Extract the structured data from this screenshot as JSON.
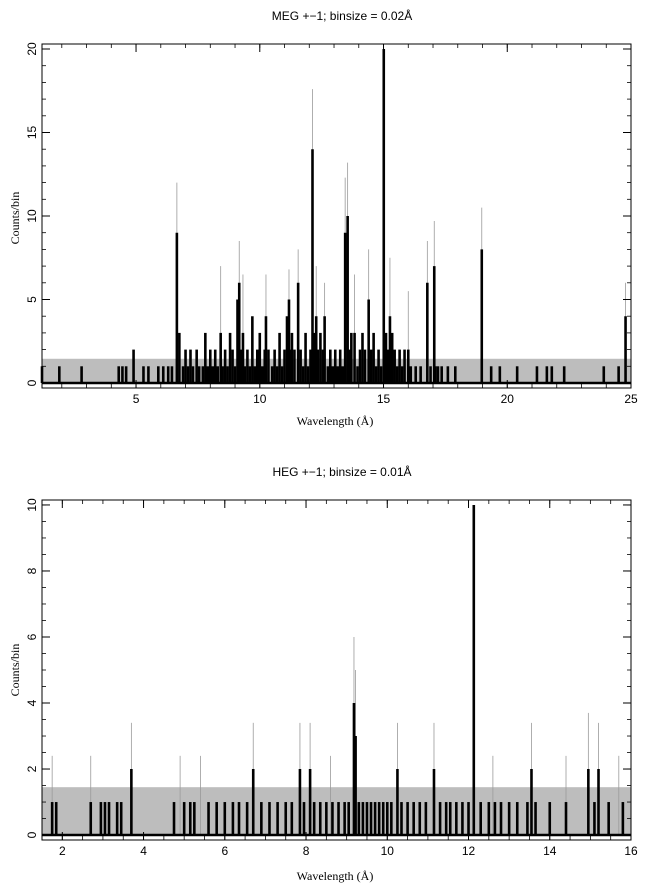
{
  "chart_data": [
    {
      "type": "bar",
      "title": "MEG +−1; binsize = 0.02Å",
      "xlabel": "Wavelength (Å)",
      "ylabel": "Counts/bin",
      "xlim": [
        1.2,
        25
      ],
      "ylim": [
        -0.3,
        20.3
      ],
      "xticks": [
        5,
        10,
        15,
        20,
        25
      ],
      "yticks": [
        0,
        5,
        10,
        15,
        20
      ],
      "minor_x_step": 1,
      "minor_y_step": 1,
      "error_band": [
        0,
        1.45
      ],
      "colors": {
        "data": "#000000",
        "error": "#9a9a9a",
        "band": "#bdbdbd"
      },
      "error_spikes": [
        {
          "x": 6.65,
          "y": 12
        },
        {
          "x": 9.17,
          "y": 8.5
        },
        {
          "x": 12.13,
          "y": 17.6
        },
        {
          "x": 13.45,
          "y": 12.3
        },
        {
          "x": 13.55,
          "y": 13.2
        },
        {
          "x": 15.01,
          "y": 19.5
        },
        {
          "x": 16.77,
          "y": 8.5
        },
        {
          "x": 17.05,
          "y": 9.7
        },
        {
          "x": 18.97,
          "y": 10.5
        },
        {
          "x": 24.78,
          "y": 6
        },
        {
          "x": 11.55,
          "y": 8
        },
        {
          "x": 12.28,
          "y": 7
        },
        {
          "x": 12.62,
          "y": 6
        },
        {
          "x": 14.4,
          "y": 8
        },
        {
          "x": 15.26,
          "y": 7.5
        },
        {
          "x": 13.83,
          "y": 6.5
        },
        {
          "x": 8.42,
          "y": 7
        },
        {
          "x": 9.32,
          "y": 6.5
        },
        {
          "x": 10.25,
          "y": 6.5
        },
        {
          "x": 11.18,
          "y": 6.8
        },
        {
          "x": 16.0,
          "y": 5.5
        }
      ],
      "points": [
        {
          "x": 1.2,
          "y": 1
        },
        {
          "x": 1.9,
          "y": 1
        },
        {
          "x": 2.8,
          "y": 1
        },
        {
          "x": 4.3,
          "y": 1
        },
        {
          "x": 4.45,
          "y": 1
        },
        {
          "x": 4.6,
          "y": 1
        },
        {
          "x": 4.9,
          "y": 2
        },
        {
          "x": 5.3,
          "y": 1
        },
        {
          "x": 5.5,
          "y": 1
        },
        {
          "x": 5.9,
          "y": 1
        },
        {
          "x": 6.1,
          "y": 1
        },
        {
          "x": 6.3,
          "y": 1
        },
        {
          "x": 6.45,
          "y": 1
        },
        {
          "x": 6.65,
          "y": 9
        },
        {
          "x": 6.75,
          "y": 3
        },
        {
          "x": 6.9,
          "y": 1
        },
        {
          "x": 7.0,
          "y": 2
        },
        {
          "x": 7.1,
          "y": 1
        },
        {
          "x": 7.2,
          "y": 2
        },
        {
          "x": 7.3,
          "y": 1
        },
        {
          "x": 7.45,
          "y": 2
        },
        {
          "x": 7.55,
          "y": 1
        },
        {
          "x": 7.7,
          "y": 1
        },
        {
          "x": 7.8,
          "y": 3
        },
        {
          "x": 7.9,
          "y": 1
        },
        {
          "x": 8.0,
          "y": 2
        },
        {
          "x": 8.1,
          "y": 1
        },
        {
          "x": 8.2,
          "y": 2
        },
        {
          "x": 8.3,
          "y": 1
        },
        {
          "x": 8.42,
          "y": 3
        },
        {
          "x": 8.5,
          "y": 1
        },
        {
          "x": 8.6,
          "y": 2
        },
        {
          "x": 8.7,
          "y": 1
        },
        {
          "x": 8.8,
          "y": 3
        },
        {
          "x": 8.9,
          "y": 2
        },
        {
          "x": 9.0,
          "y": 1
        },
        {
          "x": 9.1,
          "y": 5
        },
        {
          "x": 9.17,
          "y": 6
        },
        {
          "x": 9.25,
          "y": 2
        },
        {
          "x": 9.32,
          "y": 3
        },
        {
          "x": 9.4,
          "y": 1
        },
        {
          "x": 9.5,
          "y": 2
        },
        {
          "x": 9.6,
          "y": 1
        },
        {
          "x": 9.7,
          "y": 4
        },
        {
          "x": 9.8,
          "y": 1
        },
        {
          "x": 9.9,
          "y": 2
        },
        {
          "x": 10.0,
          "y": 3
        },
        {
          "x": 10.1,
          "y": 1
        },
        {
          "x": 10.2,
          "y": 2
        },
        {
          "x": 10.25,
          "y": 4
        },
        {
          "x": 10.35,
          "y": 2
        },
        {
          "x": 10.5,
          "y": 1
        },
        {
          "x": 10.6,
          "y": 2
        },
        {
          "x": 10.7,
          "y": 1
        },
        {
          "x": 10.8,
          "y": 3
        },
        {
          "x": 10.9,
          "y": 1
        },
        {
          "x": 11.0,
          "y": 2
        },
        {
          "x": 11.1,
          "y": 4
        },
        {
          "x": 11.18,
          "y": 5
        },
        {
          "x": 11.25,
          "y": 2
        },
        {
          "x": 11.3,
          "y": 3
        },
        {
          "x": 11.4,
          "y": 2
        },
        {
          "x": 11.55,
          "y": 6
        },
        {
          "x": 11.65,
          "y": 2
        },
        {
          "x": 11.75,
          "y": 1
        },
        {
          "x": 11.85,
          "y": 3
        },
        {
          "x": 11.95,
          "y": 1
        },
        {
          "x": 12.05,
          "y": 2
        },
        {
          "x": 12.13,
          "y": 14
        },
        {
          "x": 12.2,
          "y": 3
        },
        {
          "x": 12.28,
          "y": 4
        },
        {
          "x": 12.35,
          "y": 2
        },
        {
          "x": 12.45,
          "y": 3
        },
        {
          "x": 12.55,
          "y": 2
        },
        {
          "x": 12.62,
          "y": 4
        },
        {
          "x": 12.75,
          "y": 1
        },
        {
          "x": 12.85,
          "y": 2
        },
        {
          "x": 12.95,
          "y": 1
        },
        {
          "x": 13.05,
          "y": 2
        },
        {
          "x": 13.15,
          "y": 1
        },
        {
          "x": 13.25,
          "y": 2
        },
        {
          "x": 13.35,
          "y": 1
        },
        {
          "x": 13.45,
          "y": 9
        },
        {
          "x": 13.55,
          "y": 10
        },
        {
          "x": 13.62,
          "y": 2
        },
        {
          "x": 13.7,
          "y": 3
        },
        {
          "x": 13.83,
          "y": 3
        },
        {
          "x": 13.95,
          "y": 1
        },
        {
          "x": 14.05,
          "y": 2
        },
        {
          "x": 14.15,
          "y": 3
        },
        {
          "x": 14.25,
          "y": 2
        },
        {
          "x": 14.4,
          "y": 5
        },
        {
          "x": 14.5,
          "y": 2
        },
        {
          "x": 14.6,
          "y": 3
        },
        {
          "x": 14.7,
          "y": 1
        },
        {
          "x": 14.8,
          "y": 2
        },
        {
          "x": 14.9,
          "y": 1
        },
        {
          "x": 15.01,
          "y": 20
        },
        {
          "x": 15.1,
          "y": 3
        },
        {
          "x": 15.18,
          "y": 2
        },
        {
          "x": 15.26,
          "y": 4
        },
        {
          "x": 15.35,
          "y": 3
        },
        {
          "x": 15.45,
          "y": 2
        },
        {
          "x": 15.55,
          "y": 1
        },
        {
          "x": 15.65,
          "y": 2
        },
        {
          "x": 15.75,
          "y": 1
        },
        {
          "x": 15.85,
          "y": 2
        },
        {
          "x": 16.0,
          "y": 2
        },
        {
          "x": 16.1,
          "y": 1
        },
        {
          "x": 16.3,
          "y": 1
        },
        {
          "x": 16.5,
          "y": 1
        },
        {
          "x": 16.77,
          "y": 6
        },
        {
          "x": 16.9,
          "y": 1
        },
        {
          "x": 17.05,
          "y": 7
        },
        {
          "x": 17.1,
          "y": 1
        },
        {
          "x": 17.2,
          "y": 1
        },
        {
          "x": 17.35,
          "y": 1
        },
        {
          "x": 17.6,
          "y": 1
        },
        {
          "x": 17.9,
          "y": 1
        },
        {
          "x": 18.97,
          "y": 8
        },
        {
          "x": 19.35,
          "y": 1
        },
        {
          "x": 19.7,
          "y": 1
        },
        {
          "x": 20.4,
          "y": 1
        },
        {
          "x": 21.2,
          "y": 1
        },
        {
          "x": 21.6,
          "y": 1
        },
        {
          "x": 21.8,
          "y": 1
        },
        {
          "x": 22.3,
          "y": 1
        },
        {
          "x": 23.9,
          "y": 1
        },
        {
          "x": 24.5,
          "y": 1
        },
        {
          "x": 24.78,
          "y": 4
        }
      ]
    },
    {
      "type": "bar",
      "title": "HEG +−1; binsize = 0.01Å",
      "xlabel": "Wavelength (Å)",
      "ylabel": "Counts/bin",
      "xlim": [
        1.5,
        16
      ],
      "ylim": [
        -0.15,
        10.15
      ],
      "xticks": [
        2,
        4,
        6,
        8,
        10,
        12,
        14,
        16
      ],
      "yticks": [
        0,
        2,
        4,
        6,
        8,
        10
      ],
      "minor_x_step": 0.5,
      "minor_y_step": 0.5,
      "error_band": [
        0,
        1.45
      ],
      "colors": {
        "data": "#000000",
        "error": "#9a9a9a",
        "band": "#bdbdbd"
      },
      "error_spikes": [
        {
          "x": 9.18,
          "y": 6
        },
        {
          "x": 9.22,
          "y": 5
        },
        {
          "x": 12.13,
          "y": 7.6
        },
        {
          "x": 3.7,
          "y": 3.4
        },
        {
          "x": 6.7,
          "y": 3.4
        },
        {
          "x": 7.85,
          "y": 3.4
        },
        {
          "x": 8.1,
          "y": 3.4
        },
        {
          "x": 11.15,
          "y": 3.4
        },
        {
          "x": 13.55,
          "y": 3.4
        },
        {
          "x": 14.95,
          "y": 3.7
        },
        {
          "x": 15.2,
          "y": 3.4
        },
        {
          "x": 10.25,
          "y": 3.4
        },
        {
          "x": 1.75,
          "y": 2.4
        },
        {
          "x": 2.7,
          "y": 2.4
        },
        {
          "x": 4.9,
          "y": 2.4
        },
        {
          "x": 5.4,
          "y": 2.4
        },
        {
          "x": 8.6,
          "y": 2.4
        },
        {
          "x": 12.6,
          "y": 2.4
        },
        {
          "x": 14.4,
          "y": 2.4
        },
        {
          "x": 15.7,
          "y": 2.4
        }
      ],
      "points": [
        {
          "x": 1.75,
          "y": 1
        },
        {
          "x": 1.85,
          "y": 1
        },
        {
          "x": 2.7,
          "y": 1
        },
        {
          "x": 2.95,
          "y": 1
        },
        {
          "x": 3.05,
          "y": 1
        },
        {
          "x": 3.15,
          "y": 1
        },
        {
          "x": 3.35,
          "y": 1
        },
        {
          "x": 3.45,
          "y": 1
        },
        {
          "x": 3.7,
          "y": 2
        },
        {
          "x": 4.75,
          "y": 1
        },
        {
          "x": 5.0,
          "y": 1
        },
        {
          "x": 5.15,
          "y": 1
        },
        {
          "x": 5.25,
          "y": 1
        },
        {
          "x": 5.6,
          "y": 1
        },
        {
          "x": 5.8,
          "y": 1
        },
        {
          "x": 6.0,
          "y": 1
        },
        {
          "x": 6.2,
          "y": 1
        },
        {
          "x": 6.35,
          "y": 1
        },
        {
          "x": 6.55,
          "y": 1
        },
        {
          "x": 6.7,
          "y": 2
        },
        {
          "x": 6.9,
          "y": 1
        },
        {
          "x": 7.1,
          "y": 1
        },
        {
          "x": 7.3,
          "y": 1
        },
        {
          "x": 7.5,
          "y": 1
        },
        {
          "x": 7.65,
          "y": 1
        },
        {
          "x": 7.85,
          "y": 2
        },
        {
          "x": 7.95,
          "y": 1
        },
        {
          "x": 8.1,
          "y": 2
        },
        {
          "x": 8.2,
          "y": 1
        },
        {
          "x": 8.35,
          "y": 1
        },
        {
          "x": 8.5,
          "y": 1
        },
        {
          "x": 8.65,
          "y": 1
        },
        {
          "x": 8.8,
          "y": 1
        },
        {
          "x": 8.95,
          "y": 1
        },
        {
          "x": 9.05,
          "y": 1
        },
        {
          "x": 9.18,
          "y": 4
        },
        {
          "x": 9.22,
          "y": 3
        },
        {
          "x": 9.3,
          "y": 1
        },
        {
          "x": 9.4,
          "y": 1
        },
        {
          "x": 9.5,
          "y": 1
        },
        {
          "x": 9.6,
          "y": 1
        },
        {
          "x": 9.7,
          "y": 1
        },
        {
          "x": 9.8,
          "y": 1
        },
        {
          "x": 9.9,
          "y": 1
        },
        {
          "x": 10.0,
          "y": 1
        },
        {
          "x": 10.1,
          "y": 1
        },
        {
          "x": 10.25,
          "y": 2
        },
        {
          "x": 10.35,
          "y": 1
        },
        {
          "x": 10.5,
          "y": 1
        },
        {
          "x": 10.65,
          "y": 1
        },
        {
          "x": 10.8,
          "y": 1
        },
        {
          "x": 10.95,
          "y": 1
        },
        {
          "x": 11.15,
          "y": 2
        },
        {
          "x": 11.3,
          "y": 1
        },
        {
          "x": 11.45,
          "y": 1
        },
        {
          "x": 11.55,
          "y": 1
        },
        {
          "x": 11.7,
          "y": 1
        },
        {
          "x": 11.85,
          "y": 1
        },
        {
          "x": 12.0,
          "y": 1
        },
        {
          "x": 12.13,
          "y": 10
        },
        {
          "x": 12.3,
          "y": 1
        },
        {
          "x": 12.5,
          "y": 1
        },
        {
          "x": 12.65,
          "y": 1
        },
        {
          "x": 12.8,
          "y": 1
        },
        {
          "x": 13.0,
          "y": 1
        },
        {
          "x": 13.2,
          "y": 1
        },
        {
          "x": 13.45,
          "y": 1
        },
        {
          "x": 13.55,
          "y": 2
        },
        {
          "x": 13.65,
          "y": 1
        },
        {
          "x": 14.0,
          "y": 1
        },
        {
          "x": 14.4,
          "y": 1
        },
        {
          "x": 14.95,
          "y": 2
        },
        {
          "x": 15.1,
          "y": 1
        },
        {
          "x": 15.2,
          "y": 2
        },
        {
          "x": 15.45,
          "y": 1
        },
        {
          "x": 15.8,
          "y": 1
        }
      ]
    }
  ]
}
